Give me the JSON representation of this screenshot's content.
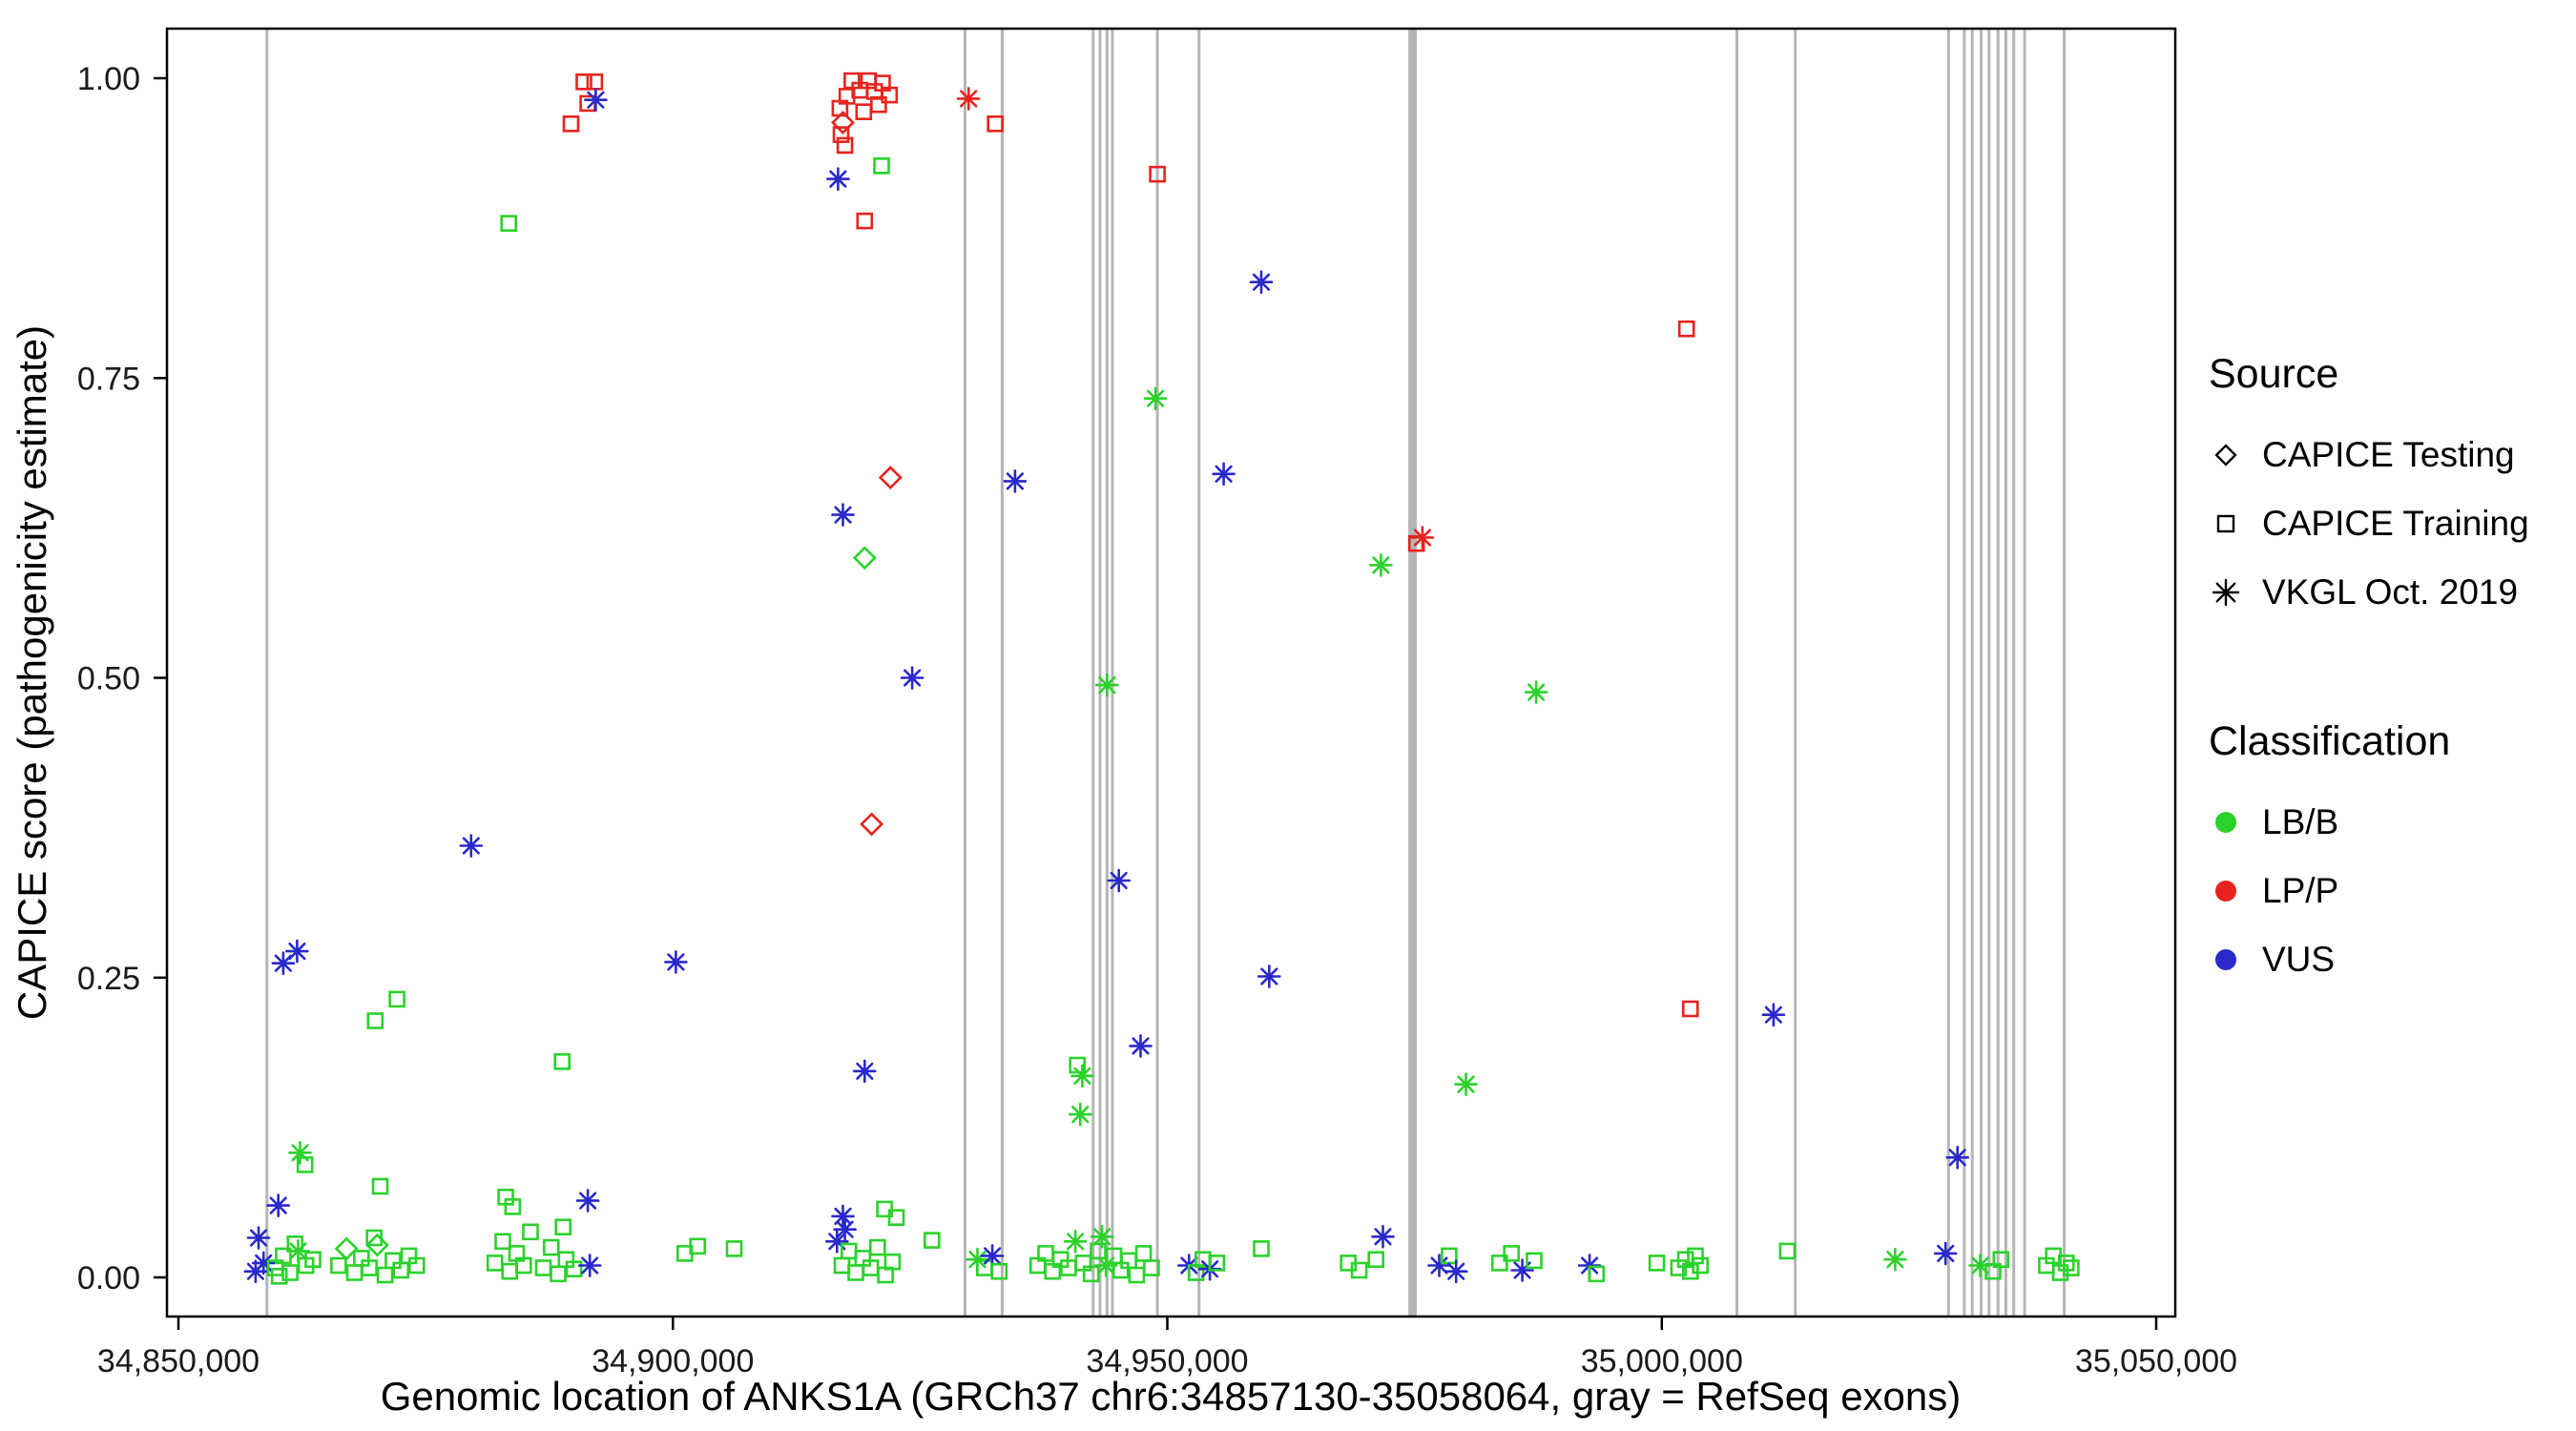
{
  "chart_data": {
    "type": "scatter",
    "title": "",
    "xlabel": "Genomic location of ANKS1A (GRCh37 chr6:34857130-35058064, gray = RefSeq exons)",
    "ylabel": "CAPICE score (pathogenicity estimate)",
    "xlim": [
      34848840,
      35051930
    ],
    "ylim": [
      -0.0326,
      1.0414
    ],
    "x_ticks": [
      34850000,
      34900000,
      34950000,
      35000000,
      35050000
    ],
    "x_tick_labels": [
      "34,850,000",
      "34,900,000",
      "34,950,000",
      "35,000,000",
      "35,050,000"
    ],
    "y_ticks": [
      0,
      0.25,
      0.5,
      0.75,
      1.0
    ],
    "y_tick_labels": [
      "0.00",
      "0.25",
      "0.50",
      "0.75",
      "1.00"
    ],
    "grid": false,
    "legend_position": "right",
    "exon_color": "#b5b5b5",
    "exon_format": [
      "genomic_position",
      "line_width_px"
    ],
    "exons": [
      [
        34858950,
        3
      ],
      [
        34929550,
        3
      ],
      [
        34933300,
        3
      ],
      [
        34942500,
        3
      ],
      [
        34943200,
        3
      ],
      [
        34943900,
        3
      ],
      [
        34944450,
        3
      ],
      [
        34949000,
        3
      ],
      [
        34953200,
        3
      ],
      [
        34974800,
        9
      ],
      [
        35007600,
        3
      ],
      [
        35013500,
        3
      ],
      [
        35029000,
        3
      ],
      [
        35030600,
        3
      ],
      [
        35031400,
        3
      ],
      [
        35032300,
        3
      ],
      [
        35033100,
        3
      ],
      [
        35034000,
        3
      ],
      [
        35034800,
        3
      ],
      [
        35035600,
        3
      ],
      [
        35036700,
        3
      ],
      [
        35040700,
        3
      ]
    ],
    "class_colors": {
      "g": "#2bd22b",
      "r": "#e8231d",
      "b": "#2929cc"
    },
    "shape_codes": {
      "d": "diamond = CAPICE Testing",
      "s": "square = CAPICE Training",
      "a": "asterisk = VKGL Oct. 2019"
    },
    "class_codes": {
      "g": "LB/B",
      "r": "LP/P",
      "b": "VUS"
    },
    "point_format": [
      "genomic_position",
      "capice_score",
      "shape",
      "classification"
    ],
    "points": [
      [
        34883400,
        0.879,
        "s",
        "g"
      ],
      [
        34889700,
        0.962,
        "s",
        "r"
      ],
      [
        34891000,
        0.997,
        "s",
        "r"
      ],
      [
        34891400,
        0.979,
        "s",
        "r"
      ],
      [
        34892100,
        0.997,
        "s",
        "r"
      ],
      [
        34892200,
        0.982,
        "a",
        "b"
      ],
      [
        34916700,
        0.916,
        "a",
        "b"
      ],
      [
        34916900,
        0.975,
        "s",
        "r"
      ],
      [
        34917200,
        0.963,
        "d",
        "r"
      ],
      [
        34917400,
        0.944,
        "s",
        "r"
      ],
      [
        34917600,
        0.985,
        "s",
        "r"
      ],
      [
        34918100,
        0.998,
        "s",
        "r"
      ],
      [
        34918900,
        0.99,
        "s",
        "r"
      ],
      [
        34919300,
        0.972,
        "s",
        "r"
      ],
      [
        34919400,
        0.881,
        "s",
        "r"
      ],
      [
        34919800,
        0.998,
        "s",
        "r"
      ],
      [
        34920400,
        0.989,
        "s",
        "r"
      ],
      [
        34920800,
        0.978,
        "s",
        "r"
      ],
      [
        34921100,
        0.927,
        "s",
        "g"
      ],
      [
        34921200,
        0.996,
        "s",
        "r"
      ],
      [
        34921900,
        0.986,
        "s",
        "r"
      ],
      [
        34917000,
        0.953,
        "s",
        "r"
      ],
      [
        34929900,
        0.983,
        "a",
        "r"
      ],
      [
        34932600,
        0.962,
        "s",
        "r"
      ],
      [
        34949000,
        0.92,
        "s",
        "r"
      ],
      [
        34959500,
        0.83,
        "a",
        "b"
      ],
      [
        35002500,
        0.791,
        "s",
        "r"
      ],
      [
        34948800,
        0.733,
        "a",
        "g"
      ],
      [
        34922000,
        0.667,
        "d",
        "r"
      ],
      [
        34934600,
        0.664,
        "a",
        "b"
      ],
      [
        34955700,
        0.67,
        "a",
        "b"
      ],
      [
        34917200,
        0.636,
        "a",
        "b"
      ],
      [
        34975800,
        0.617,
        "a",
        "r"
      ],
      [
        34975200,
        0.612,
        "s",
        "r"
      ],
      [
        34919400,
        0.6,
        "d",
        "g"
      ],
      [
        34971600,
        0.594,
        "a",
        "g"
      ],
      [
        34924200,
        0.5,
        "a",
        "b"
      ],
      [
        34943900,
        0.494,
        "a",
        "g"
      ],
      [
        34987300,
        0.488,
        "a",
        "g"
      ],
      [
        34920100,
        0.378,
        "d",
        "r"
      ],
      [
        34879600,
        0.36,
        "a",
        "b"
      ],
      [
        34945100,
        0.331,
        "a",
        "b"
      ],
      [
        34862000,
        0.272,
        "a",
        "b"
      ],
      [
        34860600,
        0.262,
        "a",
        "b"
      ],
      [
        34900300,
        0.263,
        "a",
        "b"
      ],
      [
        34960300,
        0.251,
        "a",
        "b"
      ],
      [
        34872100,
        0.232,
        "s",
        "g"
      ],
      [
        34869900,
        0.214,
        "s",
        "g"
      ],
      [
        35002900,
        0.224,
        "s",
        "r"
      ],
      [
        35011300,
        0.219,
        "a",
        "b"
      ],
      [
        34947300,
        0.193,
        "a",
        "b"
      ],
      [
        34888800,
        0.18,
        "s",
        "g"
      ],
      [
        34940900,
        0.177,
        "s",
        "g"
      ],
      [
        34941400,
        0.168,
        "a",
        "g"
      ],
      [
        34919400,
        0.172,
        "a",
        "b"
      ],
      [
        34980200,
        0.161,
        "a",
        "g"
      ],
      [
        34941200,
        0.136,
        "a",
        "g"
      ],
      [
        35029900,
        0.1,
        "a",
        "b"
      ],
      [
        34862300,
        0.104,
        "a",
        "g"
      ],
      [
        34862800,
        0.094,
        "s",
        "g"
      ],
      [
        34870400,
        0.076,
        "s",
        "g"
      ],
      [
        34860100,
        0.06,
        "a",
        "b"
      ],
      [
        34891400,
        0.064,
        "a",
        "b"
      ],
      [
        34883100,
        0.067,
        "s",
        "g"
      ],
      [
        34883800,
        0.059,
        "s",
        "g"
      ],
      [
        34917200,
        0.051,
        "a",
        "b"
      ],
      [
        34921400,
        0.057,
        "s",
        "g"
      ],
      [
        34922600,
        0.05,
        "s",
        "g"
      ],
      [
        34926200,
        0.031,
        "s",
        "g"
      ],
      [
        34858100,
        0.033,
        "a",
        "b"
      ],
      [
        34857800,
        0.005,
        "a",
        "b"
      ],
      [
        34858600,
        0.012,
        "a",
        "b"
      ],
      [
        34859800,
        0.008,
        "s",
        "g"
      ],
      [
        34860600,
        0.018,
        "s",
        "g"
      ],
      [
        34861300,
        0.004,
        "s",
        "g"
      ],
      [
        34862100,
        0.022,
        "a",
        "g"
      ],
      [
        34862900,
        0.01,
        "s",
        "g"
      ],
      [
        34863600,
        0.015,
        "s",
        "g"
      ],
      [
        34861800,
        0.028,
        "s",
        "g"
      ],
      [
        34860200,
        0.001,
        "s",
        "g"
      ],
      [
        34866200,
        0.01,
        "s",
        "g"
      ],
      [
        34867000,
        0.024,
        "d",
        "g"
      ],
      [
        34867800,
        0.004,
        "s",
        "g"
      ],
      [
        34868500,
        0.016,
        "s",
        "g"
      ],
      [
        34869300,
        0.008,
        "s",
        "g"
      ],
      [
        34870100,
        0.027,
        "d",
        "g"
      ],
      [
        34870900,
        0.002,
        "s",
        "g"
      ],
      [
        34871700,
        0.014,
        "s",
        "g"
      ],
      [
        34872500,
        0.006,
        "s",
        "g"
      ],
      [
        34873300,
        0.018,
        "s",
        "g"
      ],
      [
        34874100,
        0.01,
        "s",
        "g"
      ],
      [
        34869800,
        0.033,
        "s",
        "g"
      ],
      [
        34882000,
        0.012,
        "s",
        "g"
      ],
      [
        34882800,
        0.03,
        "s",
        "g"
      ],
      [
        34883500,
        0.005,
        "s",
        "g"
      ],
      [
        34884200,
        0.02,
        "s",
        "g"
      ],
      [
        34884900,
        0.01,
        "s",
        "g"
      ],
      [
        34885600,
        0.038,
        "s",
        "g"
      ],
      [
        34886900,
        0.008,
        "s",
        "g"
      ],
      [
        34887700,
        0.025,
        "s",
        "g"
      ],
      [
        34888400,
        0.003,
        "s",
        "g"
      ],
      [
        34889200,
        0.015,
        "s",
        "g"
      ],
      [
        34890000,
        0.007,
        "s",
        "g"
      ],
      [
        34888900,
        0.042,
        "s",
        "g"
      ],
      [
        34891600,
        0.01,
        "a",
        "b"
      ],
      [
        34901200,
        0.02,
        "s",
        "g"
      ],
      [
        34902500,
        0.026,
        "s",
        "g"
      ],
      [
        34906200,
        0.024,
        "s",
        "g"
      ],
      [
        34916600,
        0.03,
        "a",
        "b"
      ],
      [
        34917100,
        0.01,
        "s",
        "g"
      ],
      [
        34917800,
        0.022,
        "s",
        "g"
      ],
      [
        34918500,
        0.004,
        "s",
        "g"
      ],
      [
        34919200,
        0.016,
        "s",
        "g"
      ],
      [
        34920000,
        0.008,
        "s",
        "g"
      ],
      [
        34920700,
        0.025,
        "s",
        "g"
      ],
      [
        34921500,
        0.002,
        "s",
        "g"
      ],
      [
        34922200,
        0.013,
        "s",
        "g"
      ],
      [
        34917400,
        0.04,
        "a",
        "b"
      ],
      [
        34930800,
        0.015,
        "a",
        "g"
      ],
      [
        34931500,
        0.008,
        "s",
        "g"
      ],
      [
        34932300,
        0.018,
        "a",
        "b"
      ],
      [
        34933000,
        0.005,
        "s",
        "g"
      ],
      [
        34936900,
        0.01,
        "s",
        "g"
      ],
      [
        34937700,
        0.02,
        "s",
        "g"
      ],
      [
        34938400,
        0.005,
        "s",
        "g"
      ],
      [
        34939200,
        0.015,
        "s",
        "g"
      ],
      [
        34940000,
        0.008,
        "s",
        "g"
      ],
      [
        34940700,
        0.03,
        "a",
        "g"
      ],
      [
        34941500,
        0.012,
        "s",
        "g"
      ],
      [
        34942300,
        0.003,
        "s",
        "g"
      ],
      [
        34943000,
        0.022,
        "s",
        "g"
      ],
      [
        34943800,
        0.01,
        "a",
        "g"
      ],
      [
        34944600,
        0.018,
        "s",
        "g"
      ],
      [
        34945300,
        0.006,
        "s",
        "g"
      ],
      [
        34946100,
        0.014,
        "s",
        "g"
      ],
      [
        34946900,
        0.002,
        "s",
        "g"
      ],
      [
        34947600,
        0.02,
        "s",
        "g"
      ],
      [
        34948400,
        0.008,
        "s",
        "g"
      ],
      [
        34943400,
        0.034,
        "a",
        "g"
      ],
      [
        34952200,
        0.01,
        "a",
        "b"
      ],
      [
        34952900,
        0.004,
        "s",
        "g"
      ],
      [
        34953600,
        0.015,
        "s",
        "g"
      ],
      [
        34954300,
        0.007,
        "a",
        "b"
      ],
      [
        34955000,
        0.012,
        "s",
        "g"
      ],
      [
        34959500,
        0.024,
        "s",
        "g"
      ],
      [
        34968300,
        0.012,
        "s",
        "g"
      ],
      [
        34969400,
        0.006,
        "s",
        "g"
      ],
      [
        34971100,
        0.015,
        "s",
        "g"
      ],
      [
        34971800,
        0.034,
        "a",
        "b"
      ],
      [
        34977500,
        0.01,
        "a",
        "b"
      ],
      [
        34978500,
        0.018,
        "s",
        "g"
      ],
      [
        34979200,
        0.005,
        "a",
        "b"
      ],
      [
        34983600,
        0.012,
        "s",
        "g"
      ],
      [
        34984800,
        0.02,
        "s",
        "g"
      ],
      [
        34985900,
        0.006,
        "a",
        "b"
      ],
      [
        34987100,
        0.014,
        "s",
        "g"
      ],
      [
        34992700,
        0.01,
        "a",
        "b"
      ],
      [
        34993400,
        0.003,
        "s",
        "g"
      ],
      [
        34999500,
        0.012,
        "s",
        "g"
      ],
      [
        35001700,
        0.008,
        "s",
        "g"
      ],
      [
        35002400,
        0.015,
        "s",
        "g"
      ],
      [
        35002900,
        0.005,
        "s",
        "g"
      ],
      [
        35003400,
        0.018,
        "s",
        "g"
      ],
      [
        35003900,
        0.01,
        "s",
        "g"
      ],
      [
        35012700,
        0.022,
        "s",
        "g"
      ],
      [
        35023600,
        0.015,
        "a",
        "g"
      ],
      [
        35028700,
        0.02,
        "a",
        "b"
      ],
      [
        35032200,
        0.01,
        "a",
        "g"
      ],
      [
        35033500,
        0.005,
        "s",
        "g"
      ],
      [
        35034300,
        0.015,
        "s",
        "g"
      ],
      [
        35038900,
        0.01,
        "s",
        "g"
      ],
      [
        35039600,
        0.018,
        "s",
        "g"
      ],
      [
        35040300,
        0.004,
        "s",
        "g"
      ],
      [
        35040900,
        0.012,
        "s",
        "g"
      ],
      [
        35041400,
        0.008,
        "s",
        "g"
      ]
    ]
  },
  "legend": {
    "source_title": "Source",
    "source_items": [
      {
        "label": "CAPICE Testing",
        "shape": "diamond"
      },
      {
        "label": "CAPICE Training",
        "shape": "square"
      },
      {
        "label": "VKGL Oct. 2019",
        "shape": "asterisk"
      }
    ],
    "classification_title": "Classification",
    "classification_items": [
      {
        "label": "LB/B",
        "color": "#2bd22b"
      },
      {
        "label": "LP/P",
        "color": "#e8231d"
      },
      {
        "label": "VUS",
        "color": "#2929cc"
      }
    ]
  }
}
